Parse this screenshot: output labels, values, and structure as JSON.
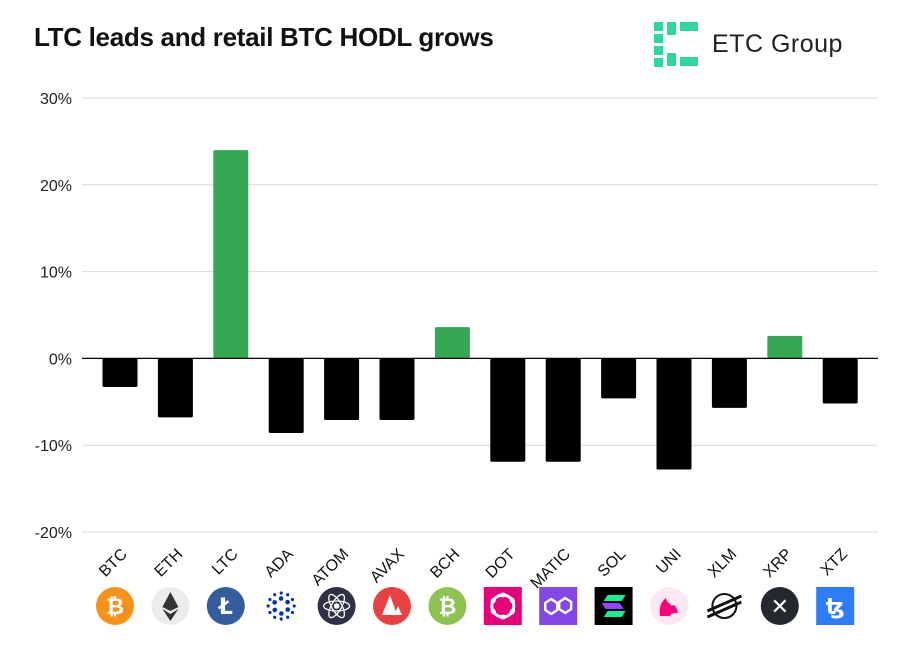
{
  "title": "LTC leads and retail BTC HODL grows",
  "brand": {
    "name": "ETC Group",
    "logo_color": "#2fd6a0"
  },
  "chart_data": {
    "type": "bar",
    "categories": [
      "BTC",
      "ETH",
      "LTC",
      "ADA",
      "ATOM",
      "AVAX",
      "BCH",
      "DOT",
      "MATIC",
      "SOL",
      "UNI",
      "XLM",
      "XRP",
      "XTZ"
    ],
    "values": [
      -3.3,
      -6.8,
      24.0,
      -8.6,
      -7.1,
      -7.1,
      3.6,
      -11.9,
      -11.9,
      -4.6,
      -12.8,
      -5.7,
      2.6,
      -5.2
    ],
    "ylim": [
      -20,
      30
    ],
    "yticks": [
      30,
      20,
      10,
      0,
      -10,
      -20
    ],
    "ytick_labels": [
      "30%",
      "20%",
      "10%",
      "0%",
      "-10%",
      "-20%"
    ],
    "grid": true,
    "colors": {
      "positive": "#34a853",
      "negative": "#000000",
      "grid": "#d9d9d9"
    },
    "icons": [
      {
        "name": "bitcoin-icon",
        "bg": "#f7931a",
        "fg": "#ffffff",
        "glyph": "₿",
        "shape": "circle"
      },
      {
        "name": "ethereum-icon",
        "bg": "#ececec",
        "fg": "#343434",
        "glyph": "eth",
        "shape": "circle"
      },
      {
        "name": "litecoin-icon",
        "bg": "#345d9d",
        "fg": "#ffffff",
        "glyph": "Ł",
        "shape": "circle"
      },
      {
        "name": "cardano-icon",
        "bg": "#ffffff",
        "fg": "#0033ad",
        "glyph": "ada",
        "shape": "none"
      },
      {
        "name": "cosmos-icon",
        "bg": "#2e3148",
        "fg": "#ffffff",
        "glyph": "atom",
        "shape": "circle"
      },
      {
        "name": "avalanche-icon",
        "bg": "#e84142",
        "fg": "#ffffff",
        "glyph": "avax",
        "shape": "circle"
      },
      {
        "name": "bitcoin-cash-icon",
        "bg": "#8dc351",
        "fg": "#ffffff",
        "glyph": "₿",
        "shape": "circle"
      },
      {
        "name": "polkadot-icon",
        "bg": "#e6007a",
        "fg": "#ffffff",
        "glyph": "dot",
        "shape": "square"
      },
      {
        "name": "polygon-icon",
        "bg": "#8247e5",
        "fg": "#ffffff",
        "glyph": "matic",
        "shape": "square"
      },
      {
        "name": "solana-icon",
        "bg": "#000000",
        "fg": "#14f195",
        "glyph": "sol",
        "shape": "square"
      },
      {
        "name": "uniswap-icon",
        "bg": "#fde7f2",
        "fg": "#ff007a",
        "glyph": "uni",
        "shape": "circle"
      },
      {
        "name": "stellar-icon",
        "bg": "#ffffff",
        "fg": "#111111",
        "glyph": "xlm",
        "shape": "none"
      },
      {
        "name": "xrp-icon",
        "bg": "#23292f",
        "fg": "#ffffff",
        "glyph": "✕",
        "shape": "circle"
      },
      {
        "name": "tezos-icon",
        "bg": "#2c7df7",
        "fg": "#ffffff",
        "glyph": "ꜩ",
        "shape": "square"
      }
    ]
  }
}
